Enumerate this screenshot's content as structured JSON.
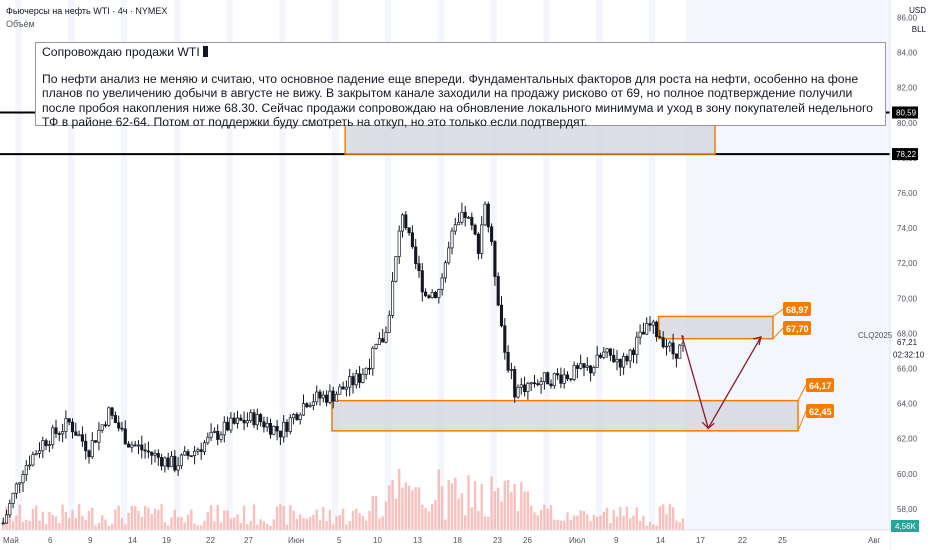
{
  "header": {
    "title": "Фьючерсы на нефть WTI · 4ч · NYMEX",
    "volume_label": "Объём"
  },
  "currency_badges": [
    "USD",
    "BLL"
  ],
  "note": {
    "title": "Сопровождаю продажи WTI",
    "body": "По нефти анализ не меняю и считаю, что основное падение еще впереди. Фундаментальных факторов для роста на нефти, особенно на фоне планов по увеличению добычи в августе не вижу. В закрытом канале заходили на продажу рисково от 69, но полное подтверждение получили после пробоя накопления ниже 68.30. Сейчас продажи сопровождаю на обновление локального минимума и уход в зону покупателей недельного ТФ в районе 62-64. Потом от поддержки буду смотреть на откуп, но это только если подтвердят."
  },
  "ticker": {
    "symbol": "CLQ2025",
    "price": "67,21",
    "countdown": "02:32:10"
  },
  "volume_badge": "4,56K",
  "colors": {
    "up": "#131722",
    "down": "#131722",
    "zone_fill": "#d1d4dc",
    "zone_border": "#f57c00",
    "label_fill": "#f57c00",
    "arrow": "#8b1a2a",
    "hline": "#000000",
    "volume": "#f7a9a7",
    "weekend": "#e9eefc"
  },
  "chart_data": {
    "type": "candlestick",
    "y_axis": {
      "min": 56.8,
      "max": 87.0,
      "ticks": [
        "58,00",
        "60,00",
        "62,00",
        "64,00",
        "66,00",
        "68,00",
        "70,00",
        "72,00",
        "74,00",
        "76,00",
        "78,00",
        "80,00",
        "82,00",
        "84,00",
        "86,00"
      ]
    },
    "x_axis": {
      "ticks": [
        "Май",
        "6",
        "9",
        "14",
        "19",
        "22",
        "27",
        "Июн",
        "5",
        "10",
        "13",
        "18",
        "23",
        "26",
        "Июл",
        "9",
        "14",
        "17",
        "22",
        "25",
        "Авг"
      ]
    },
    "horizontal_lines": [
      {
        "value": 80.59,
        "label": "80,59"
      },
      {
        "value": 78.22,
        "label": "78,22"
      }
    ],
    "zones": [
      {
        "name": "resistance-zone",
        "low": 78.22,
        "high": 80.59
      },
      {
        "name": "sell-zone",
        "low": 67.7,
        "high": 68.97,
        "labels": [
          "68,97",
          "67,70"
        ]
      },
      {
        "name": "buyer-zone",
        "low": 62.45,
        "high": 64.17,
        "labels": [
          "64,17",
          "62,45"
        ]
      }
    ],
    "price_path": [
      {
        "bar": 0,
        "price": 57.2
      },
      {
        "bar": 6,
        "price": 60.3
      },
      {
        "bar": 12,
        "price": 61.8
      },
      {
        "bar": 20,
        "price": 62.9
      },
      {
        "bar": 26,
        "price": 61.4
      },
      {
        "bar": 32,
        "price": 63.5
      },
      {
        "bar": 38,
        "price": 61.8
      },
      {
        "bar": 44,
        "price": 61.2
      },
      {
        "bar": 52,
        "price": 60.5
      },
      {
        "bar": 60,
        "price": 61.6
      },
      {
        "bar": 68,
        "price": 62.7
      },
      {
        "bar": 76,
        "price": 63.2
      },
      {
        "bar": 84,
        "price": 62.4
      },
      {
        "bar": 92,
        "price": 64.2
      },
      {
        "bar": 100,
        "price": 64.5
      },
      {
        "bar": 108,
        "price": 65.5
      },
      {
        "bar": 116,
        "price": 68.0
      },
      {
        "bar": 121,
        "price": 75.0
      },
      {
        "bar": 124,
        "price": 72.5
      },
      {
        "bar": 128,
        "price": 70.2
      },
      {
        "bar": 132,
        "price": 70.5
      },
      {
        "bar": 136,
        "price": 73.5
      },
      {
        "bar": 140,
        "price": 74.8
      },
      {
        "bar": 144,
        "price": 73.0
      },
      {
        "bar": 146,
        "price": 75.5
      },
      {
        "bar": 149,
        "price": 71.5
      },
      {
        "bar": 152,
        "price": 67.0
      },
      {
        "bar": 155,
        "price": 64.8
      },
      {
        "bar": 162,
        "price": 65.3
      },
      {
        "bar": 170,
        "price": 65.6
      },
      {
        "bar": 178,
        "price": 66.0
      },
      {
        "bar": 182,
        "price": 66.8
      },
      {
        "bar": 188,
        "price": 66.4
      },
      {
        "bar": 192,
        "price": 67.5
      },
      {
        "bar": 196,
        "price": 68.4
      },
      {
        "bar": 199,
        "price": 67.9
      },
      {
        "bar": 203,
        "price": 66.9
      },
      {
        "bar": 206,
        "price": 67.21
      }
    ],
    "projection": [
      {
        "bar": 206,
        "price": 67.9
      },
      {
        "bar": 214,
        "price": 62.6
      },
      {
        "bar": 230,
        "price": 67.8
      }
    ]
  }
}
